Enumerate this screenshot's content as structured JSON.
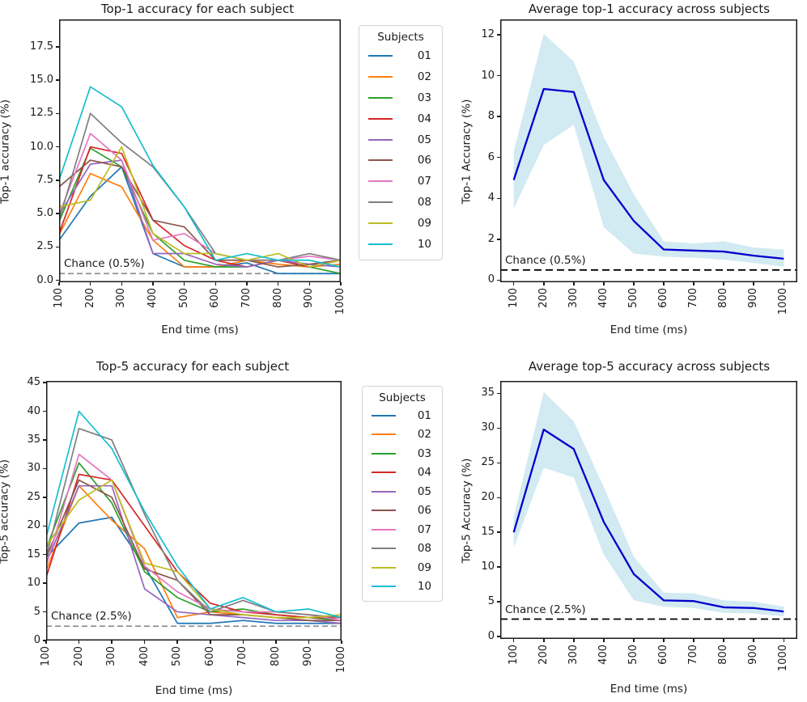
{
  "figure": {
    "background": "#ffffff"
  },
  "chart_data": [
    {
      "type": "line",
      "title": "Top-1 accuracy for each subject",
      "xlabel": "End time (ms)",
      "ylabel": "Top-1 accuracy (%)",
      "x": [
        100,
        200,
        300,
        400,
        500,
        600,
        700,
        800,
        900,
        1000
      ],
      "xticks": [
        100,
        200,
        300,
        400,
        500,
        600,
        700,
        800,
        900,
        1000
      ],
      "yticks": [
        0.0,
        2.5,
        5.0,
        7.5,
        10.0,
        12.5,
        15.0,
        17.5
      ],
      "ytick_decimals": 1,
      "xlim": [
        100,
        1000
      ],
      "ylim": [
        -0.15,
        19.55
      ],
      "grid": false,
      "legend": {
        "title": "Subjects",
        "position": "right"
      },
      "chance": {
        "label": "Chance (0.5%)",
        "value": 0.5,
        "color": "#909090"
      },
      "series": [
        {
          "name": "01",
          "color": "#1f77b4",
          "values": [
            3.0,
            6.3,
            8.5,
            2.0,
            1.0,
            1.0,
            1.3,
            0.5,
            0.5,
            0.5
          ]
        },
        {
          "name": "02",
          "color": "#ff7f0e",
          "values": [
            3.4,
            8.0,
            7.0,
            3.0,
            1.0,
            1.0,
            1.5,
            1.2,
            1.0,
            1.2
          ]
        },
        {
          "name": "03",
          "color": "#2ca02c",
          "values": [
            4.4,
            9.9,
            8.5,
            3.5,
            1.5,
            1.0,
            1.0,
            1.5,
            1.0,
            0.5
          ]
        },
        {
          "name": "04",
          "color": "#d62728",
          "values": [
            3.5,
            10.0,
            9.5,
            4.5,
            2.6,
            1.5,
            1.0,
            1.5,
            1.0,
            1.5
          ]
        },
        {
          "name": "05",
          "color": "#9467bd",
          "values": [
            4.9,
            8.7,
            9.0,
            2.0,
            2.0,
            1.2,
            1.0,
            1.5,
            1.2,
            1.0
          ]
        },
        {
          "name": "06",
          "color": "#8c564b",
          "values": [
            7.0,
            9.0,
            8.5,
            4.5,
            4.0,
            1.5,
            1.5,
            1.0,
            1.2,
            1.5
          ]
        },
        {
          "name": "07",
          "color": "#e377c2",
          "values": [
            4.9,
            11.0,
            9.0,
            3.0,
            3.5,
            2.0,
            1.5,
            1.5,
            1.8,
            1.5
          ]
        },
        {
          "name": "08",
          "color": "#7f7f7f",
          "values": [
            4.5,
            12.5,
            10.3,
            8.5,
            5.5,
            2.0,
            1.5,
            1.5,
            2.0,
            1.5
          ]
        },
        {
          "name": "09",
          "color": "#bcbd22",
          "values": [
            5.5,
            6.0,
            10.0,
            3.5,
            2.0,
            2.0,
            1.5,
            2.0,
            1.0,
            1.5
          ]
        },
        {
          "name": "10",
          "color": "#17becf",
          "values": [
            7.5,
            14.5,
            13.0,
            8.6,
            5.5,
            1.5,
            2.0,
            1.5,
            1.5,
            1.0
          ]
        }
      ]
    },
    {
      "type": "line",
      "title": "Average top-1 accuracy across subjects",
      "xlabel": "End time (ms)",
      "ylabel": "Top-1 Accuracy (%)",
      "x": [
        100,
        200,
        300,
        400,
        500,
        600,
        700,
        800,
        900,
        1000
      ],
      "xticks": [
        100,
        200,
        300,
        400,
        500,
        600,
        700,
        800,
        900,
        1000
      ],
      "yticks": [
        0,
        2,
        4,
        6,
        8,
        10,
        12
      ],
      "ytick_decimals": 0,
      "xlim": [
        55,
        1045
      ],
      "ylim": [
        -0.1,
        12.75
      ],
      "grid": false,
      "legend": null,
      "chance": {
        "label": "Chance (0.5%)",
        "value": 0.5,
        "color": "#000000"
      },
      "mean": {
        "name": "mean",
        "color": "#0000cd",
        "values": [
          4.9,
          9.35,
          9.2,
          4.9,
          2.9,
          1.5,
          1.45,
          1.4,
          1.2,
          1.05
        ]
      },
      "band": {
        "color": "#add8e6",
        "opacity": 0.55,
        "upper": [
          6.3,
          12.05,
          10.7,
          7.0,
          4.2,
          1.9,
          1.8,
          1.9,
          1.6,
          1.5
        ],
        "lower": [
          3.5,
          6.6,
          7.6,
          2.6,
          1.3,
          1.15,
          1.1,
          1.0,
          0.85,
          0.65
        ]
      }
    },
    {
      "type": "line",
      "title": "Top-5 accuracy for each subject",
      "xlabel": "End time (ms)",
      "ylabel": "Top-5 accuracy (%)",
      "x": [
        100,
        200,
        300,
        400,
        500,
        600,
        700,
        800,
        900,
        1000
      ],
      "xticks": [
        100,
        200,
        300,
        400,
        500,
        600,
        700,
        800,
        900,
        1000
      ],
      "yticks": [
        0,
        5,
        10,
        15,
        20,
        25,
        30,
        35,
        40,
        45
      ],
      "ytick_decimals": 0,
      "xlim": [
        100,
        1000
      ],
      "ylim": [
        0,
        45.3
      ],
      "grid": false,
      "legend": {
        "title": "Subjects",
        "position": "right"
      },
      "chance": {
        "label": "Chance (2.5%)",
        "value": 2.5,
        "color": "#909090"
      },
      "series": [
        {
          "name": "01",
          "color": "#1f77b4",
          "values": [
            14.5,
            20.5,
            21.5,
            13.0,
            3.0,
            3.0,
            3.5,
            3.0,
            3.0,
            3.0
          ]
        },
        {
          "name": "02",
          "color": "#ff7f0e",
          "values": [
            12.2,
            27.0,
            21.0,
            16.0,
            4.0,
            5.0,
            4.5,
            4.0,
            3.5,
            3.0
          ]
        },
        {
          "name": "03",
          "color": "#2ca02c",
          "values": [
            16.0,
            31.0,
            24.0,
            12.0,
            7.5,
            5.0,
            5.5,
            4.5,
            4.0,
            3.5
          ]
        },
        {
          "name": "04",
          "color": "#d62728",
          "values": [
            11.0,
            29.0,
            28.0,
            20.0,
            12.0,
            6.5,
            5.0,
            4.5,
            4.0,
            4.0
          ]
        },
        {
          "name": "05",
          "color": "#9467bd",
          "values": [
            13.5,
            27.0,
            27.0,
            9.0,
            5.0,
            4.5,
            4.0,
            3.5,
            3.5,
            3.0
          ]
        },
        {
          "name": "06",
          "color": "#8c564b",
          "values": [
            14.5,
            28.0,
            25.0,
            12.5,
            10.5,
            4.5,
            4.5,
            4.0,
            3.5,
            3.5
          ]
        },
        {
          "name": "07",
          "color": "#e377c2",
          "values": [
            13.0,
            32.5,
            28.0,
            13.0,
            8.5,
            5.5,
            5.0,
            5.0,
            4.5,
            3.5
          ]
        },
        {
          "name": "08",
          "color": "#7f7f7f",
          "values": [
            14.5,
            37.0,
            35.0,
            22.0,
            10.5,
            5.0,
            7.0,
            5.0,
            4.5,
            4.0
          ]
        },
        {
          "name": "09",
          "color": "#bcbd22",
          "values": [
            16.5,
            24.5,
            28.0,
            13.5,
            12.0,
            5.5,
            4.5,
            4.0,
            4.0,
            4.5
          ]
        },
        {
          "name": "10",
          "color": "#17becf",
          "values": [
            18.0,
            40.0,
            33.5,
            22.5,
            13.0,
            5.5,
            7.5,
            5.0,
            5.5,
            4.0
          ]
        }
      ]
    },
    {
      "type": "line",
      "title": "Average top-5 accuracy across subjects",
      "xlabel": "End time (ms)",
      "ylabel": "Top-5 Accuracy (%)",
      "x": [
        100,
        200,
        300,
        400,
        500,
        600,
        700,
        800,
        900,
        1000
      ],
      "xticks": [
        100,
        200,
        300,
        400,
        500,
        600,
        700,
        800,
        900,
        1000
      ],
      "yticks": [
        0,
        5,
        10,
        15,
        20,
        25,
        30,
        35
      ],
      "ytick_decimals": 0,
      "xlim": [
        55,
        1045
      ],
      "ylim": [
        -0.35,
        36.8
      ],
      "grid": false,
      "legend": null,
      "chance": {
        "label": "Chance (2.5%)",
        "value": 2.5,
        "color": "#000000"
      },
      "mean": {
        "name": "mean",
        "color": "#0000cd",
        "values": [
          15.0,
          29.8,
          27.0,
          16.5,
          9.0,
          5.2,
          5.1,
          4.2,
          4.1,
          3.6
        ]
      },
      "band": {
        "color": "#add8e6",
        "opacity": 0.55,
        "upper": [
          17.2,
          35.2,
          31.0,
          21.5,
          11.5,
          6.3,
          6.2,
          5.2,
          5.0,
          4.3
        ],
        "lower": [
          12.8,
          24.3,
          22.9,
          11.8,
          5.2,
          4.3,
          4.1,
          3.4,
          3.3,
          2.9
        ]
      }
    }
  ]
}
